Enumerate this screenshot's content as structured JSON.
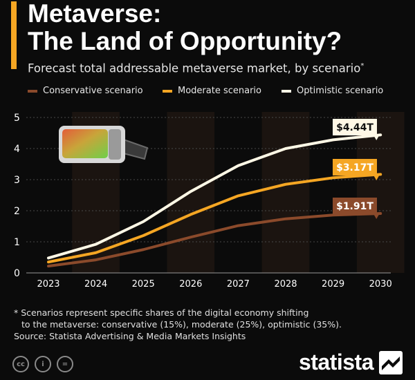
{
  "header": {
    "title_line1": "Metaverse:",
    "title_line2": "The Land of Opportunity?",
    "subtitle": "Forecast total addressable metaverse market, by scenario",
    "subtitle_marker": "*",
    "accent_color": "#f5a623"
  },
  "chart_data": {
    "type": "line",
    "title": "",
    "xlabel": "",
    "ylabel": "",
    "x": [
      "2023",
      "2024",
      "2025",
      "2026",
      "2027",
      "2028",
      "2029",
      "2030"
    ],
    "ylim": [
      0,
      5
    ],
    "yticks": [
      "0",
      "1",
      "2",
      "3",
      "4",
      "5"
    ],
    "grid": true,
    "legend_position": "top",
    "series": [
      {
        "name": "Conservative scenario",
        "color": "#8b4a2b",
        "values": [
          0.22,
          0.42,
          0.75,
          1.15,
          1.52,
          1.74,
          1.86,
          1.91
        ],
        "end_label": "$1.91T"
      },
      {
        "name": "Moderate scenario",
        "color": "#f5a623",
        "values": [
          0.35,
          0.65,
          1.2,
          1.88,
          2.48,
          2.85,
          3.06,
          3.17
        ],
        "end_label": "$3.17T"
      },
      {
        "name": "Optimistic scenario",
        "color": "#fff8e6",
        "values": [
          0.48,
          0.92,
          1.65,
          2.62,
          3.45,
          4.0,
          4.28,
          4.44
        ],
        "end_label": "$4.44T"
      }
    ]
  },
  "illustration": {
    "icon": "vr-headset-icon"
  },
  "footnote": {
    "line1": "* Scenarios represent specific shares of the digital economy shifting",
    "line2": "to the metaverse: conservative (15%), moderate (25%), optimistic (35%).",
    "source": "Source: Statista Advertising & Media Markets Insights"
  },
  "license_icons": [
    {
      "icon": "creative-commons-icon",
      "label": "cc"
    },
    {
      "icon": "attribution-icon",
      "label": "i"
    },
    {
      "icon": "no-derivatives-icon",
      "label": "="
    }
  ],
  "brand": {
    "name": "statista",
    "icon": "statista-logo-icon"
  }
}
